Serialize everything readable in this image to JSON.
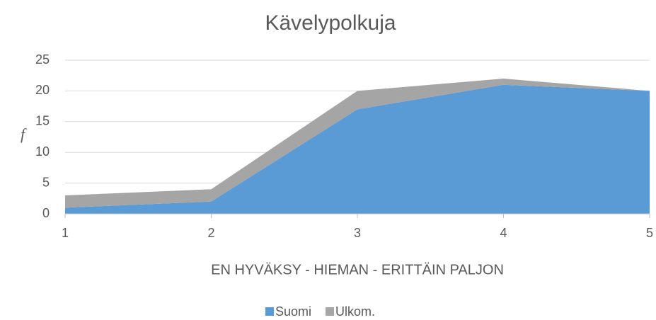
{
  "chart_data": {
    "type": "stacked_area",
    "title": "Kävelypolkuja",
    "categories": [
      "1",
      "2",
      "3",
      "4",
      "5"
    ],
    "series": [
      {
        "name": "Suomi",
        "color": "#5b9bd5",
        "values": [
          1,
          2,
          17,
          21,
          20
        ]
      },
      {
        "name": "Ulkom.",
        "color": "#a5a5a5",
        "values": [
          2,
          2,
          3,
          1,
          0
        ]
      }
    ],
    "x_label": "EN HYVÄKSY - HIEMAN - ERITTÄIN PALJON",
    "y_label": "f",
    "ylim": [
      0,
      25
    ],
    "yticks": [
      0,
      5,
      10,
      15,
      20,
      25
    ],
    "grid": true,
    "legend": "bottom"
  }
}
